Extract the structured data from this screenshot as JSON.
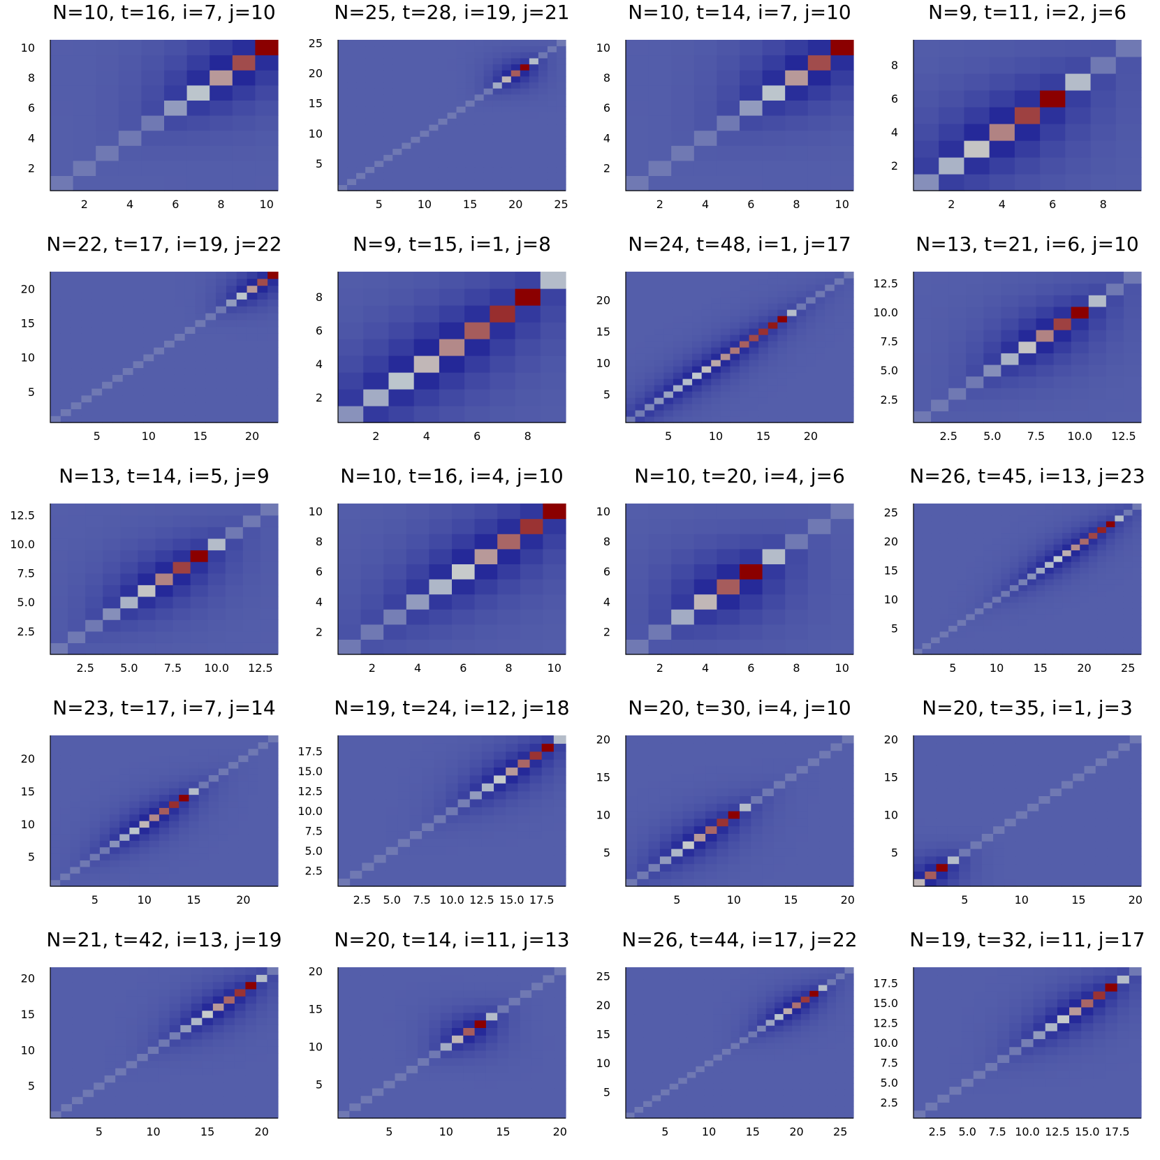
{
  "chart_data": [
    {
      "type": "heatmap",
      "title": "N=10, t=16, i=7, j=10",
      "N": 10,
      "t": 16,
      "i": 7,
      "j": 10,
      "xticks": [
        "2",
        "4",
        "6",
        "8",
        "10"
      ],
      "yticks": [
        "2",
        "4",
        "6",
        "8",
        "10"
      ]
    },
    {
      "type": "heatmap",
      "title": "N=25, t=28, i=19, j=21",
      "N": 25,
      "t": 28,
      "i": 19,
      "j": 21,
      "xticks": [
        "5",
        "10",
        "15",
        "20",
        "25"
      ],
      "yticks": [
        "5",
        "10",
        "15",
        "20",
        "25"
      ]
    },
    {
      "type": "heatmap",
      "title": "N=10, t=14, i=7, j=10",
      "N": 10,
      "t": 14,
      "i": 7,
      "j": 10,
      "xticks": [
        "2",
        "4",
        "6",
        "8",
        "10"
      ],
      "yticks": [
        "2",
        "4",
        "6",
        "8",
        "10"
      ]
    },
    {
      "type": "heatmap",
      "title": "N=9, t=11, i=2, j=6",
      "N": 9,
      "t": 11,
      "i": 2,
      "j": 6,
      "xticks": [
        "2",
        "4",
        "6",
        "8"
      ],
      "yticks": [
        "2",
        "4",
        "6",
        "8"
      ]
    },
    {
      "type": "heatmap",
      "title": "N=22, t=17, i=19, j=22",
      "N": 22,
      "t": 17,
      "i": 19,
      "j": 22,
      "xticks": [
        "5",
        "10",
        "15",
        "20"
      ],
      "yticks": [
        "5",
        "10",
        "15",
        "20"
      ]
    },
    {
      "type": "heatmap",
      "title": "N=9, t=15, i=1, j=8",
      "N": 9,
      "t": 15,
      "i": 1,
      "j": 8,
      "xticks": [
        "2",
        "4",
        "6",
        "8"
      ],
      "yticks": [
        "2",
        "4",
        "6",
        "8"
      ]
    },
    {
      "type": "heatmap",
      "title": "N=24, t=48, i=1, j=17",
      "N": 24,
      "t": 48,
      "i": 1,
      "j": 17,
      "xticks": [
        "5",
        "10",
        "15",
        "20"
      ],
      "yticks": [
        "5",
        "10",
        "15",
        "20"
      ]
    },
    {
      "type": "heatmap",
      "title": "N=13, t=21, i=6, j=10",
      "N": 13,
      "t": 21,
      "i": 6,
      "j": 10,
      "xticks": [
        "2.5",
        "5.0",
        "7.5",
        "10.0",
        "12.5"
      ],
      "yticks": [
        "2.5",
        "5.0",
        "7.5",
        "10.0",
        "12.5"
      ]
    },
    {
      "type": "heatmap",
      "title": "N=13, t=14, i=5, j=9",
      "N": 13,
      "t": 14,
      "i": 5,
      "j": 9,
      "xticks": [
        "2.5",
        "5.0",
        "7.5",
        "10.0",
        "12.5"
      ],
      "yticks": [
        "2.5",
        "5.0",
        "7.5",
        "10.0",
        "12.5"
      ]
    },
    {
      "type": "heatmap",
      "title": "N=10, t=16, i=4, j=10",
      "N": 10,
      "t": 16,
      "i": 4,
      "j": 10,
      "xticks": [
        "2",
        "4",
        "6",
        "8",
        "10"
      ],
      "yticks": [
        "2",
        "4",
        "6",
        "8",
        "10"
      ]
    },
    {
      "type": "heatmap",
      "title": "N=10, t=20, i=4, j=6",
      "N": 10,
      "t": 20,
      "i": 4,
      "j": 6,
      "xticks": [
        "2",
        "4",
        "6",
        "8",
        "10"
      ],
      "yticks": [
        "2",
        "4",
        "6",
        "8",
        "10"
      ]
    },
    {
      "type": "heatmap",
      "title": "N=26, t=45, i=13, j=23",
      "N": 26,
      "t": 45,
      "i": 13,
      "j": 23,
      "xticks": [
        "5",
        "10",
        "15",
        "20",
        "25"
      ],
      "yticks": [
        "5",
        "10",
        "15",
        "20",
        "25"
      ]
    },
    {
      "type": "heatmap",
      "title": "N=23, t=17, i=7, j=14",
      "N": 23,
      "t": 17,
      "i": 7,
      "j": 14,
      "xticks": [
        "5",
        "10",
        "15",
        "20"
      ],
      "yticks": [
        "5",
        "10",
        "15",
        "20"
      ]
    },
    {
      "type": "heatmap",
      "title": "N=19, t=24, i=12, j=18",
      "N": 19,
      "t": 24,
      "i": 12,
      "j": 18,
      "xticks": [
        "2.5",
        "5.0",
        "7.5",
        "10.0",
        "12.5",
        "15.0",
        "17.5"
      ],
      "yticks": [
        "2.5",
        "5.0",
        "7.5",
        "10.0",
        "12.5",
        "15.0",
        "17.5"
      ]
    },
    {
      "type": "heatmap",
      "title": "N=20, t=30, i=4, j=10",
      "N": 20,
      "t": 30,
      "i": 4,
      "j": 10,
      "xticks": [
        "5",
        "10",
        "15",
        "20"
      ],
      "yticks": [
        "5",
        "10",
        "15",
        "20"
      ]
    },
    {
      "type": "heatmap",
      "title": "N=20, t=35, i=1, j=3",
      "N": 20,
      "t": 35,
      "i": 1,
      "j": 3,
      "xticks": [
        "5",
        "10",
        "15",
        "20"
      ],
      "yticks": [
        "5",
        "10",
        "15",
        "20"
      ]
    },
    {
      "type": "heatmap",
      "title": "N=21, t=42, i=13, j=19",
      "N": 21,
      "t": 42,
      "i": 13,
      "j": 19,
      "xticks": [
        "5",
        "10",
        "15",
        "20"
      ],
      "yticks": [
        "5",
        "10",
        "15",
        "20"
      ]
    },
    {
      "type": "heatmap",
      "title": "N=20, t=14, i=11, j=13",
      "N": 20,
      "t": 14,
      "i": 11,
      "j": 13,
      "xticks": [
        "5",
        "10",
        "15",
        "20"
      ],
      "yticks": [
        "5",
        "10",
        "15",
        "20"
      ]
    },
    {
      "type": "heatmap",
      "title": "N=26, t=44, i=17, j=22",
      "N": 26,
      "t": 44,
      "i": 17,
      "j": 22,
      "xticks": [
        "5",
        "10",
        "15",
        "20",
        "25"
      ],
      "yticks": [
        "5",
        "10",
        "15",
        "20",
        "25"
      ]
    },
    {
      "type": "heatmap",
      "title": "N=19, t=32, i=11, j=17",
      "N": 19,
      "t": 32,
      "i": 11,
      "j": 17,
      "xticks": [
        "2.5",
        "5.0",
        "7.5",
        "10.0",
        "12.5",
        "15.0",
        "17.5"
      ],
      "yticks": [
        "2.5",
        "5.0",
        "7.5",
        "10.0",
        "12.5",
        "15.0",
        "17.5"
      ]
    }
  ],
  "colors": {
    "high": "#8b0000",
    "mid": "#c8d0d0",
    "low": "#00008b",
    "background": "#ffffff"
  },
  "colormap": "seismic"
}
